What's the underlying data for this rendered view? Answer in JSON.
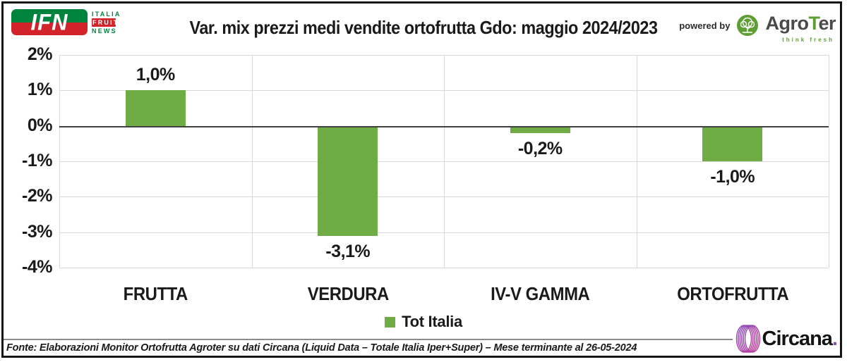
{
  "header": {
    "ifn_logo": {
      "acronym": "IFN",
      "line1": "ITALIA",
      "line2": "FRUIT",
      "line3": "NEWS"
    },
    "powered_by": "powered by",
    "agroter": {
      "part1": "Agro",
      "part2": "T",
      "part3": "er",
      "tagline": "think fresh"
    }
  },
  "chart_data": {
    "type": "bar",
    "title": "Var. mix prezzi medi vendite ortofrutta Gdo: maggio 2024/2023",
    "categories": [
      "FRUTTA",
      "VERDURA",
      "IV-V GAMMA",
      "ORTOFRUTTA"
    ],
    "series": [
      {
        "name": "Tot Italia",
        "values": [
          1.0,
          -3.1,
          -0.2,
          -1.0
        ],
        "labels": [
          "1,0%",
          "-3,1%",
          "-0,2%",
          "-1,0%"
        ],
        "color": "#6FAC46"
      }
    ],
    "y_axis": {
      "min": -4,
      "max": 2,
      "ticks": [
        2,
        1,
        0,
        -1,
        -2,
        -3,
        -4
      ],
      "tick_labels": [
        "2%",
        "1%",
        "0%",
        "-1%",
        "-2%",
        "-3%",
        "-4%"
      ]
    },
    "grid": true,
    "legend_position": "bottom"
  },
  "footer": {
    "source": "Fonte: Elaborazioni Monitor Ortofrutta Agroter su dati Circana (Liquid Data – Totale Italia Iper+Super) – Mese terminante al 26-05-2024",
    "circana": {
      "name": "Circana",
      "dot": "."
    }
  },
  "colors": {
    "bar_green": "#6FAC46",
    "ifn_green": "#00843D",
    "ifn_red": "#D2232A",
    "agroter_green": "#5F9E33",
    "circana_purple": "#8A4FBE",
    "circana_magenta": "#C13C92",
    "zero_line": "#404040",
    "gridline": "#D9D9D9"
  }
}
